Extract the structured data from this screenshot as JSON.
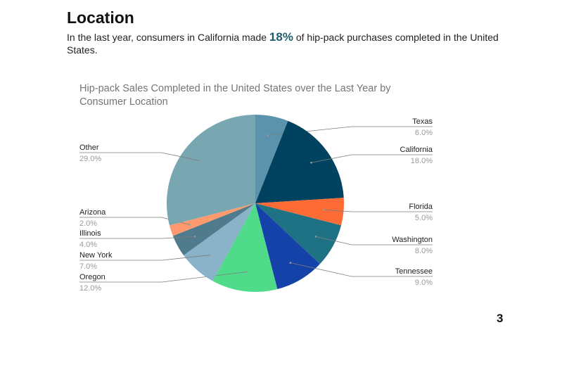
{
  "slide": {
    "heading": "Location",
    "intro_before": "In the last year, consumers in California made ",
    "intro_highlight": "18%",
    "intro_after": " of hip-pack purchases completed in the United States.",
    "page_number": "3"
  },
  "chart_data": {
    "type": "pie",
    "title": "Hip-pack Sales Completed in the United States over the Last Year by Consumer Location",
    "slices": [
      {
        "label": "Texas",
        "value": 6.0,
        "display": "6.0%",
        "color": "#5b93ad"
      },
      {
        "label": "California",
        "value": 18.0,
        "display": "18.0%",
        "color": "#00425f"
      },
      {
        "label": "Florida",
        "value": 5.0,
        "display": "5.0%",
        "color": "#ff6b35"
      },
      {
        "label": "Washington",
        "value": 8.0,
        "display": "8.0%",
        "color": "#1e7284"
      },
      {
        "label": "Tennessee",
        "value": 9.0,
        "display": "9.0%",
        "color": "#1442a9"
      },
      {
        "label": "Oregon",
        "value": 12.0,
        "display": "12.0%",
        "color": "#4fdb8a"
      },
      {
        "label": "New York",
        "value": 7.0,
        "display": "7.0%",
        "color": "#8ab2c8"
      },
      {
        "label": "Illinois",
        "value": 4.0,
        "display": "4.0%",
        "color": "#4f7b8c"
      },
      {
        "label": "Arizona",
        "value": 2.0,
        "display": "2.0%",
        "color": "#ff9a6f"
      },
      {
        "label": "Other",
        "value": 29.0,
        "display": "29.0%",
        "color": "#78a6b1"
      }
    ],
    "legend": "none"
  }
}
